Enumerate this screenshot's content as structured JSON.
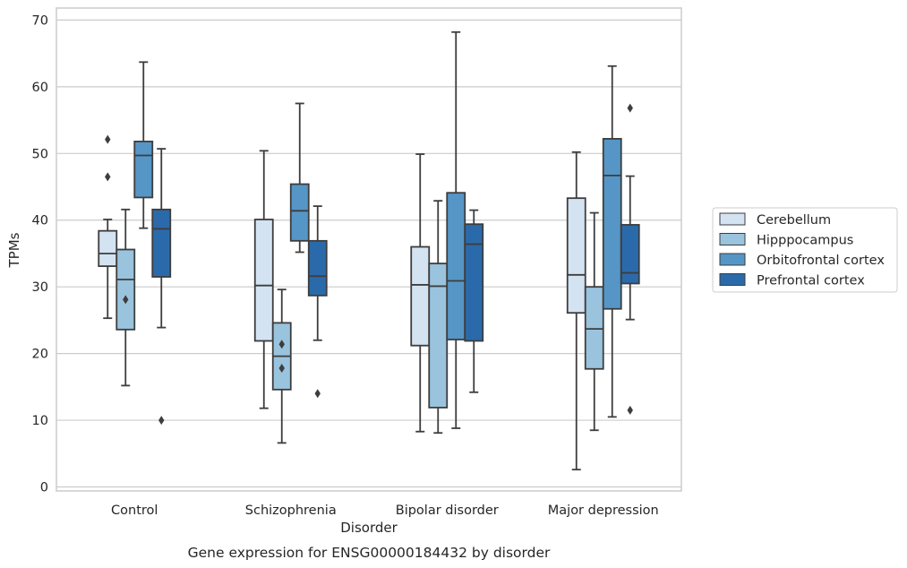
{
  "chart_data": {
    "type": "box",
    "title": "Gene expression for ENSG00000184432 by disorder",
    "xlabel": "Disorder",
    "ylabel": "TPMs",
    "ylim": [
      -0.6,
      71.8
    ],
    "yticks": [
      0,
      10,
      20,
      30,
      40,
      50,
      60,
      70
    ],
    "grid": "horizontal",
    "legend_position": "right",
    "categories": [
      "Control",
      "Schizophrenia",
      "Bipolar disorder",
      "Major depression"
    ],
    "series": [
      {
        "name": "Cerebellum",
        "color": "#d4e3f2",
        "boxes": [
          {
            "whislo": 25.3,
            "q1": 33.1,
            "med": 35.0,
            "q3": 38.4,
            "whishi": 40.1,
            "fliers": [
              46.5,
              52.1
            ]
          },
          {
            "whislo": 11.8,
            "q1": 21.9,
            "med": 30.2,
            "q3": 40.1,
            "whishi": 50.4,
            "fliers": []
          },
          {
            "whislo": 8.3,
            "q1": 21.2,
            "med": 30.3,
            "q3": 36.0,
            "whishi": 49.9,
            "fliers": []
          },
          {
            "whislo": 2.6,
            "q1": 26.1,
            "med": 31.8,
            "q3": 43.3,
            "whishi": 50.2,
            "fliers": []
          }
        ]
      },
      {
        "name": "Hipppocampus",
        "color": "#9ac3de",
        "boxes": [
          {
            "whislo": 15.2,
            "q1": 23.6,
            "med": 31.1,
            "q3": 35.6,
            "whishi": 41.6,
            "fliers": [
              28.1
            ]
          },
          {
            "whislo": 6.6,
            "q1": 14.6,
            "med": 19.6,
            "q3": 24.6,
            "whishi": 29.6,
            "fliers": [
              21.4,
              17.8
            ]
          },
          {
            "whislo": 8.1,
            "q1": 11.9,
            "med": 30.1,
            "q3": 33.5,
            "whishi": 42.9,
            "fliers": []
          },
          {
            "whislo": 8.5,
            "q1": 17.7,
            "med": 23.7,
            "q3": 30.0,
            "whishi": 41.1,
            "fliers": []
          }
        ]
      },
      {
        "name": "Orbitofrontal cortex",
        "color": "#5596c7",
        "boxes": [
          {
            "whislo": 38.8,
            "q1": 43.4,
            "med": 49.7,
            "q3": 51.8,
            "whishi": 63.7,
            "fliers": []
          },
          {
            "whislo": 35.2,
            "q1": 36.9,
            "med": 41.4,
            "q3": 45.4,
            "whishi": 57.5,
            "fliers": []
          },
          {
            "whislo": 8.8,
            "q1": 22.1,
            "med": 30.9,
            "q3": 44.1,
            "whishi": 68.2,
            "fliers": []
          },
          {
            "whislo": 10.5,
            "q1": 26.7,
            "med": 46.7,
            "q3": 52.2,
            "whishi": 63.1,
            "fliers": []
          }
        ]
      },
      {
        "name": "Prefrontal cortex",
        "color": "#2b6aaa",
        "boxes": [
          {
            "whislo": 23.9,
            "q1": 31.5,
            "med": 38.7,
            "q3": 41.6,
            "whishi": 50.7,
            "fliers": [
              10.0
            ]
          },
          {
            "whislo": 22.0,
            "q1": 28.7,
            "med": 31.6,
            "q3": 36.9,
            "whishi": 42.1,
            "fliers": [
              14.0
            ]
          },
          {
            "whislo": 14.2,
            "q1": 21.9,
            "med": 36.4,
            "q3": 39.4,
            "whishi": 41.5,
            "fliers": []
          },
          {
            "whislo": 25.1,
            "q1": 30.5,
            "med": 32.1,
            "q3": 39.3,
            "whishi": 46.6,
            "fliers": [
              11.5,
              56.8
            ]
          }
        ]
      }
    ]
  }
}
